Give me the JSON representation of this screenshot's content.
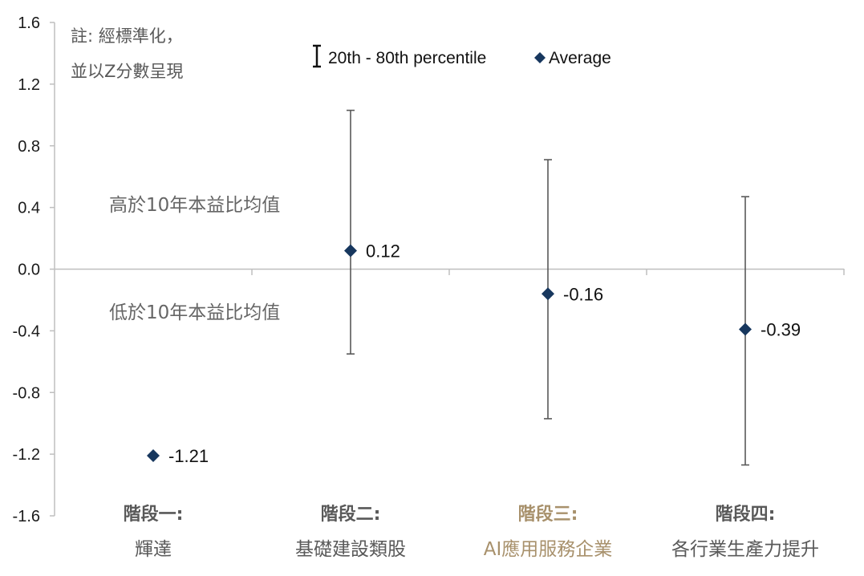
{
  "chart_data": {
    "type": "scatter",
    "ylim": [
      -1.6,
      1.6
    ],
    "yticks": [
      "1.6",
      "1.2",
      "0.8",
      "0.4",
      "0.0",
      "-0.4",
      "-0.8",
      "-1.2",
      "-1.6"
    ],
    "grid": false,
    "categories": [
      {
        "line1": "階段一:",
        "line2": "輝達",
        "color": "#595959"
      },
      {
        "line1": "階段二:",
        "line2": "基礎建設類股",
        "color": "#595959"
      },
      {
        "line1": "階段三:",
        "line2": "AI應用服務企業",
        "color": "#A8916C"
      },
      {
        "line1": "階段四:",
        "line2": "各行業生產力提升",
        "color": "#595959"
      }
    ],
    "series": [
      {
        "name": "Average",
        "values": [
          -1.21,
          0.12,
          -0.16,
          -0.39
        ],
        "labels": [
          "-1.21",
          "0.12",
          "-0.16",
          "-0.39"
        ],
        "color": "#17375E"
      },
      {
        "name": "20th - 80th percentile",
        "low": [
          null,
          -0.55,
          -0.97,
          -1.27
        ],
        "high": [
          null,
          1.03,
          0.71,
          0.47
        ],
        "color": "#595959"
      }
    ],
    "legend_position": "top",
    "legend": {
      "range": "20th - 80th percentile",
      "average": "Average"
    },
    "note": [
      "註: 經標準化，",
      "並以Z分數呈現"
    ],
    "zone_labels": {
      "above": "高於10年本益比均值",
      "below": "低於10年本益比均值"
    }
  }
}
